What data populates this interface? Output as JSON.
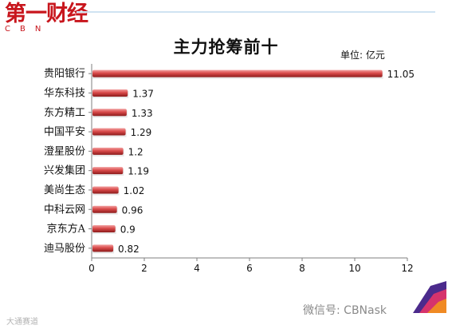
{
  "logo": {
    "cn": "第一财经",
    "en": "CBN"
  },
  "footer": {
    "brand": "微信号: CBNask",
    "watermark": "大通赛道"
  },
  "colors": {
    "bar_dark": "#8c1b1b",
    "bar_mid": "#d94a4a",
    "bar_light": "#f2a0a0",
    "axis": "#7f7f7f",
    "brand_red": "#c8161d"
  },
  "chart_data": {
    "type": "bar",
    "orientation": "horizontal",
    "title": "主力抢筹前十",
    "unit": "单位: 亿元",
    "categories": [
      "贵阳银行",
      "华东科技",
      "东方精工",
      "中国平安",
      "澄星股份",
      "兴发集团",
      "美尚生态",
      "中科云网",
      "京东方A",
      "迪马股份"
    ],
    "values": [
      11.05,
      1.37,
      1.33,
      1.29,
      1.2,
      1.19,
      1.02,
      0.96,
      0.9,
      0.82
    ],
    "value_labels": [
      "11.05",
      "1.37",
      "1.33",
      "1.29",
      "1.2",
      "1.19",
      "1.02",
      "0.96",
      "0.9",
      "0.82"
    ],
    "xlim": [
      0,
      12
    ],
    "xticks": [
      0,
      2,
      4,
      6,
      8,
      10,
      12
    ],
    "xtick_labels": [
      "0",
      "2",
      "4",
      "6",
      "8",
      "10",
      "12"
    ],
    "grid": false,
    "legend": "none"
  }
}
